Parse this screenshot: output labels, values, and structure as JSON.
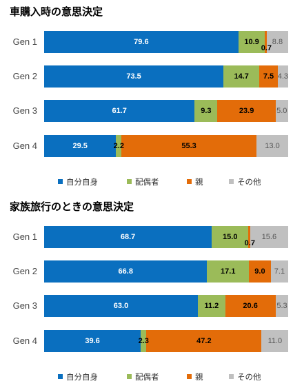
{
  "chart_data": [
    {
      "type": "bar",
      "orientation": "horizontal",
      "stacked": true,
      "title": "車購入時の意思決定",
      "categories": [
        "Gen 1",
        "Gen 2",
        "Gen 3",
        "Gen 4"
      ],
      "series": [
        {
          "name": "自分自身",
          "color": "#0a6fbf",
          "values": [
            79.6,
            73.5,
            61.7,
            29.5
          ]
        },
        {
          "name": "配偶者",
          "color": "#9bbb59",
          "values": [
            10.9,
            14.7,
            9.3,
            2.2
          ]
        },
        {
          "name": "親",
          "color": "#e36c09",
          "values": [
            0.7,
            7.5,
            23.9,
            55.3
          ]
        },
        {
          "name": "その他",
          "color": "#c0c0c0",
          "values": [
            8.8,
            4.3,
            5.0,
            13.0
          ]
        }
      ],
      "labels": [
        [
          "79.6",
          "10.9",
          "0.7",
          "8.8"
        ],
        [
          "73.5",
          "14.7",
          "7.5",
          "4.3"
        ],
        [
          "61.7",
          "9.3",
          "23.9",
          "5.0"
        ],
        [
          "29.5",
          "2.2",
          "55.3",
          "13.0"
        ]
      ],
      "xlim": [
        0,
        100
      ],
      "legend_position": "bottom"
    },
    {
      "type": "bar",
      "orientation": "horizontal",
      "stacked": true,
      "title": "家族旅行のときの意思決定",
      "categories": [
        "Gen 1",
        "Gen 2",
        "Gen 3",
        "Gen 4"
      ],
      "series": [
        {
          "name": "自分自身",
          "color": "#0a6fbf",
          "values": [
            68.7,
            66.8,
            63.0,
            39.6
          ]
        },
        {
          "name": "配偶者",
          "color": "#9bbb59",
          "values": [
            15.0,
            17.1,
            11.2,
            2.3
          ]
        },
        {
          "name": "親",
          "color": "#e36c09",
          "values": [
            0.7,
            9.0,
            20.6,
            47.2
          ]
        },
        {
          "name": "その他",
          "color": "#c0c0c0",
          "values": [
            15.6,
            7.1,
            5.3,
            11.0
          ]
        }
      ],
      "labels": [
        [
          "68.7",
          "15.0",
          "0.7",
          "15.6"
        ],
        [
          "66.8",
          "17.1",
          "9.0",
          "7.1"
        ],
        [
          "63.0",
          "11.2",
          "20.6",
          "5.3"
        ],
        [
          "39.6",
          "2.3",
          "47.2",
          "11.0"
        ]
      ],
      "xlim": [
        0,
        100
      ],
      "legend_position": "bottom"
    }
  ]
}
